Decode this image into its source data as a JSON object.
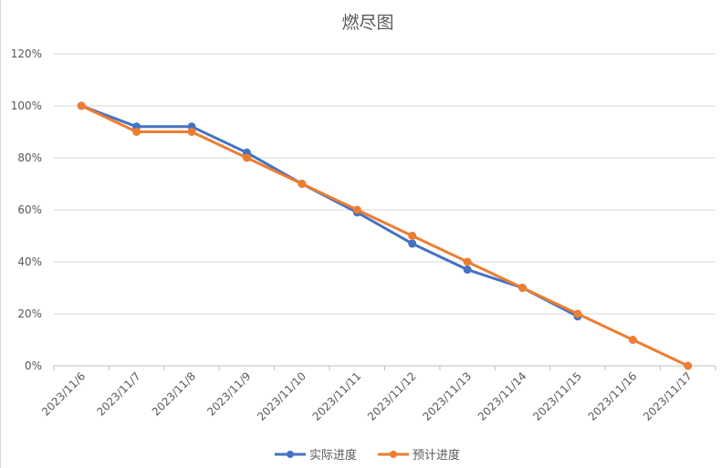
{
  "chart_data": {
    "type": "line",
    "title": "燃尽图",
    "categories": [
      "2023/11/6",
      "2023/11/7",
      "2023/11/8",
      "2023/11/9",
      "2023/11/10",
      "2023/11/11",
      "2023/11/12",
      "2023/11/13",
      "2023/11/14",
      "2023/11/15",
      "2023/11/16",
      "2023/11/17"
    ],
    "series": [
      {
        "name": "实际进度",
        "color": "#4472C4",
        "values": [
          100,
          92,
          92,
          82,
          70,
          59,
          47,
          37,
          30,
          19,
          null,
          null
        ]
      },
      {
        "name": "预计进度",
        "color": "#ED7D31",
        "values": [
          100,
          90,
          90,
          80,
          70,
          60,
          50,
          40,
          30,
          20,
          10,
          0
        ]
      }
    ],
    "y_ticks": [
      "0%",
      "20%",
      "40%",
      "60%",
      "80%",
      "100%",
      "120%"
    ],
    "ylim": [
      0,
      120
    ],
    "grid": true,
    "legend_position": "bottom"
  }
}
